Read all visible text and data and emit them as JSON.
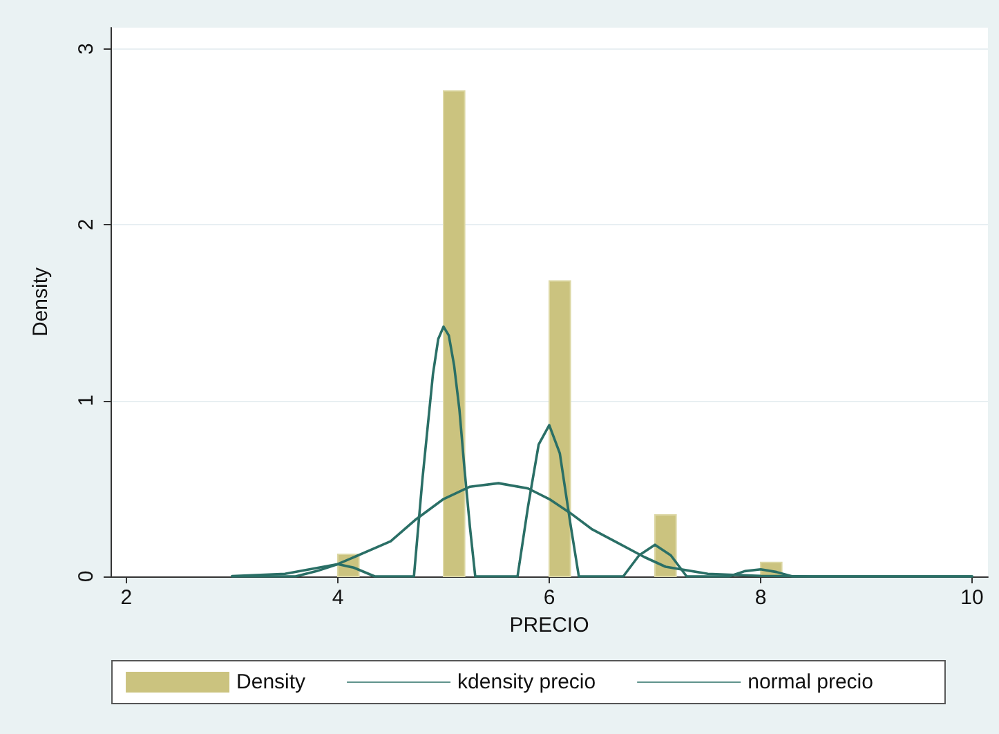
{
  "chart_data": {
    "type": "histogram",
    "xlabel": "PRECIO",
    "ylabel": "Density",
    "xlim": [
      1.85,
      10.15
    ],
    "xticks": [
      2,
      4,
      6,
      8,
      10
    ],
    "ylim": [
      0,
      3.12
    ],
    "yticks": [
      0,
      1,
      2,
      3
    ],
    "grid": "y",
    "legend": "bottom",
    "marker": "none",
    "line_style": "solid",
    "series": [
      {
        "name": "Density",
        "color": "#cbc37f",
        "bins": [
          4.0,
          4.2,
          4.4,
          4.6,
          4.8,
          5.0,
          5.2,
          5.4,
          5.6,
          5.8,
          6.0,
          6.2,
          6.4,
          6.6,
          6.8,
          7.0,
          7.2,
          7.4,
          7.6,
          7.8,
          8.0,
          8.2
        ],
        "values": [
          0.126,
          0,
          0,
          0,
          0,
          2.76,
          0,
          0,
          0,
          0,
          1.68,
          0,
          0,
          0,
          0,
          0.35,
          0,
          0,
          0,
          0,
          0.08
        ]
      },
      {
        "name": "kdensity precio",
        "type": "line",
        "color": "#2a6f66",
        "x": [
          3.0,
          3.6,
          3.8,
          4.0,
          4.15,
          4.35,
          4.72,
          4.8,
          4.85,
          4.9,
          4.95,
          5.0,
          5.05,
          5.1,
          5.15,
          5.2,
          5.25,
          5.3,
          5.7,
          5.8,
          5.9,
          6.0,
          6.1,
          6.2,
          6.28,
          6.7,
          6.85,
          7.0,
          7.15,
          7.3,
          7.7,
          7.85,
          8.0,
          8.15,
          8.3,
          10.0
        ],
        "values": [
          0,
          0,
          0.03,
          0.07,
          0.05,
          0,
          0,
          0.55,
          0.85,
          1.15,
          1.35,
          1.42,
          1.37,
          1.2,
          0.95,
          0.6,
          0.28,
          0,
          0,
          0.4,
          0.75,
          0.86,
          0.7,
          0.3,
          0,
          0,
          0.12,
          0.18,
          0.12,
          0,
          0,
          0.03,
          0.04,
          0.025,
          0,
          0
        ]
      },
      {
        "name": "normal precio",
        "type": "line",
        "color": "#2a6f66",
        "x": [
          3.0,
          3.5,
          4.0,
          4.5,
          4.73,
          5.0,
          5.25,
          5.52,
          5.8,
          6.0,
          6.2,
          6.4,
          6.65,
          6.9,
          7.1,
          7.5,
          8.0,
          8.5,
          10.0
        ],
        "values": [
          0.002,
          0.015,
          0.07,
          0.2,
          0.32,
          0.44,
          0.51,
          0.53,
          0.5,
          0.44,
          0.36,
          0.27,
          0.19,
          0.11,
          0.055,
          0.015,
          0.003,
          0,
          0
        ]
      }
    ]
  }
}
